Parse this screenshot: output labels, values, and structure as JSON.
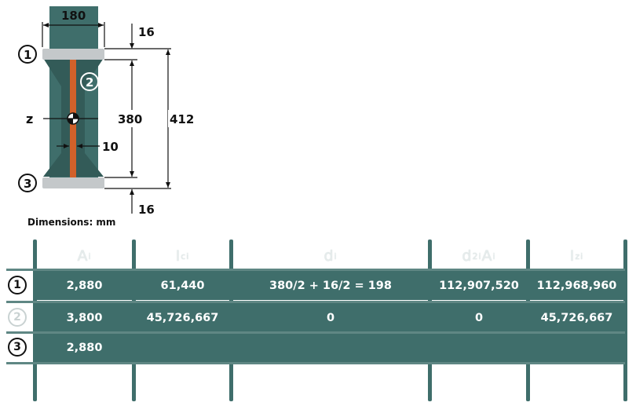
{
  "diagram": {
    "width_label": "180",
    "top_flange_label": "16",
    "bottom_flange_label": "16",
    "web_height_label": "380",
    "total_height_label": "412",
    "web_thickness_label": "10",
    "axis_label": "z",
    "markers": [
      "1",
      "2",
      "3"
    ],
    "units_caption": "Dimensions: mm",
    "colors": {
      "flange": "#c4c8ca",
      "web": "#d2612a",
      "teal": "#3f6e6b"
    }
  },
  "table": {
    "headers": {
      "A": "A",
      "A_sub": "i",
      "Ic": "I",
      "Ic_sub": "ci",
      "d": "d",
      "d_sub": "i",
      "d2A_d": "d",
      "d2A_sup": "2",
      "d2A_sub": "i",
      "d2A_A": "A",
      "d2A_sub2": "i",
      "Iz": "I",
      "Iz_sub": "zi"
    },
    "rows": [
      {
        "marker": "1",
        "A": "2,880",
        "Ic": "61,440",
        "d": "380/2 + 16/2 = 198",
        "d2A": "112,907,520",
        "Iz": "112,968,960"
      },
      {
        "marker": "2",
        "A": "3,800",
        "Ic": "45,726,667",
        "d": "0",
        "d2A": "0",
        "Iz": "45,726,667"
      },
      {
        "marker": "3",
        "A": "2,880",
        "Ic": "",
        "d": "",
        "d2A": "",
        "Iz": ""
      }
    ]
  }
}
